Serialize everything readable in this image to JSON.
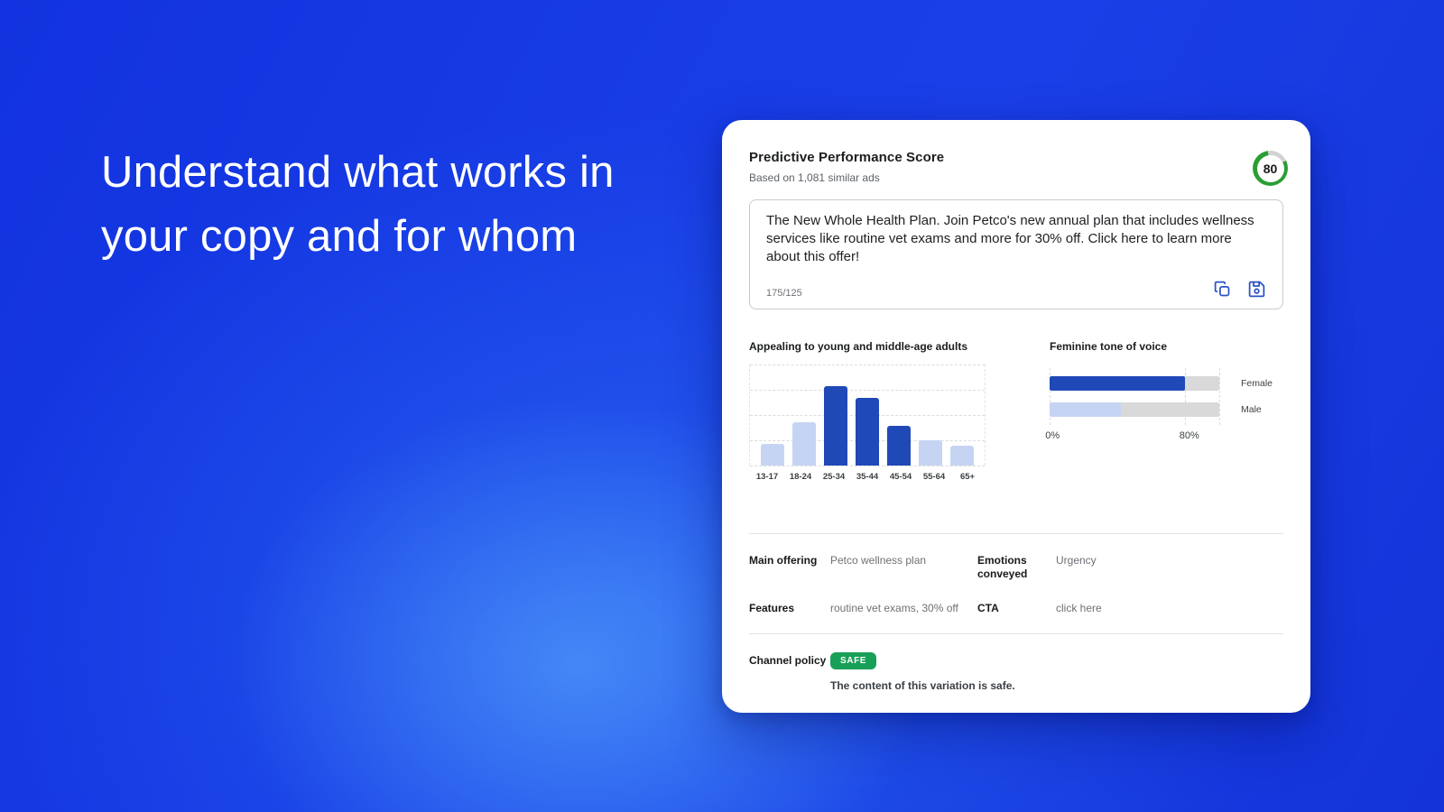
{
  "hero": {
    "headline_lines": [
      "Understand what works in",
      "your copy and for whom"
    ]
  },
  "card": {
    "title": "Predictive Performance Score",
    "subtitle": "Based on 1,081 similar ads",
    "score": {
      "value": "80",
      "percent": 80,
      "ring_color": "#2a9e35",
      "ring_track_color": "#d2d2d2"
    },
    "ad_copy": {
      "text": "The New Whole Health Plan. Join Petco's new annual plan that includes wellness services like routine vet exams and more for 30% off. Click here to learn more about this offer!",
      "char_counter": "175/125",
      "icons": [
        "copy-icon",
        "save-icon"
      ]
    },
    "details": {
      "rows": [
        {
          "label": "Main offering",
          "value": "Petco wellness plan"
        },
        {
          "label": "Emotions conveyed",
          "value": "Urgency"
        },
        {
          "label": "Features",
          "value": "routine vet exams, 30% off"
        },
        {
          "label": "CTA",
          "value": "click here"
        }
      ]
    },
    "channel_policy": {
      "label": "Channel policy",
      "badge": "SAFE",
      "badge_color": "#18a058",
      "message": "The content of this variation is safe."
    }
  },
  "chart_data": [
    {
      "type": "bar",
      "title": "Appealing to young and middle-age adults",
      "categories": [
        "13-17",
        "18-24",
        "25-34",
        "35-44",
        "45-54",
        "55-64",
        "65+"
      ],
      "values": [
        21,
        43,
        79,
        67,
        39,
        25,
        20
      ],
      "highlighted": [
        false,
        false,
        true,
        true,
        true,
        false,
        false
      ],
      "ylim": [
        0,
        100
      ],
      "grid": "dashed-horizontal",
      "legend": "none",
      "colors": {
        "highlight": "#2049b8",
        "normal": "#c6d4f4"
      }
    },
    {
      "type": "bar-horizontal",
      "title": "Feminine tone of voice",
      "categories": [
        "Female",
        "Male"
      ],
      "values": [
        80,
        42
      ],
      "xlim": [
        0,
        100
      ],
      "ticks": [
        {
          "label": "0%",
          "pos": 0
        },
        {
          "label": "80%",
          "pos": 80
        }
      ],
      "gridline_positions": [
        0,
        80,
        100
      ],
      "legend": "right",
      "colors": {
        "Female": "#2049b8",
        "Male": "#c6d4f4",
        "track": "#d9d9d9"
      }
    }
  ]
}
